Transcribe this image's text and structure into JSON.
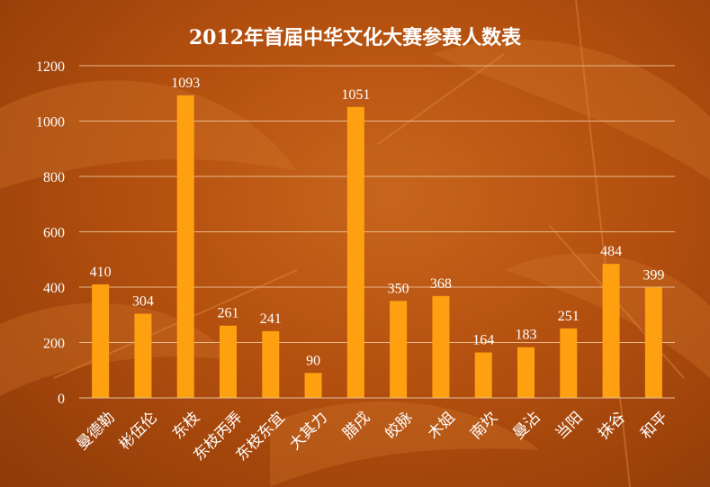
{
  "colors": {
    "bar": "#ffa010",
    "grid": "#e8b88c",
    "axis": "#e8c0a0",
    "text": "#ffffff"
  },
  "chart_data": {
    "type": "bar",
    "title": "2012年首届中华文化大赛参赛人数表",
    "xlabel": "",
    "ylabel": "",
    "ylim": [
      0,
      1200
    ],
    "yticks": [
      0,
      200,
      400,
      600,
      800,
      1000,
      1200
    ],
    "grid": true,
    "legend": "none",
    "categories": [
      "曼德勒",
      "彬伍伦",
      "东枝",
      "东枝丙弄",
      "东枝东宜",
      "大其力",
      "腊戌",
      "皎脉",
      "木姐",
      "南坎",
      "曼沾",
      "当阳",
      "抹谷",
      "和平"
    ],
    "values": [
      410,
      304,
      1093,
      261,
      241,
      90,
      1051,
      350,
      368,
      164,
      183,
      251,
      484,
      399
    ]
  }
}
